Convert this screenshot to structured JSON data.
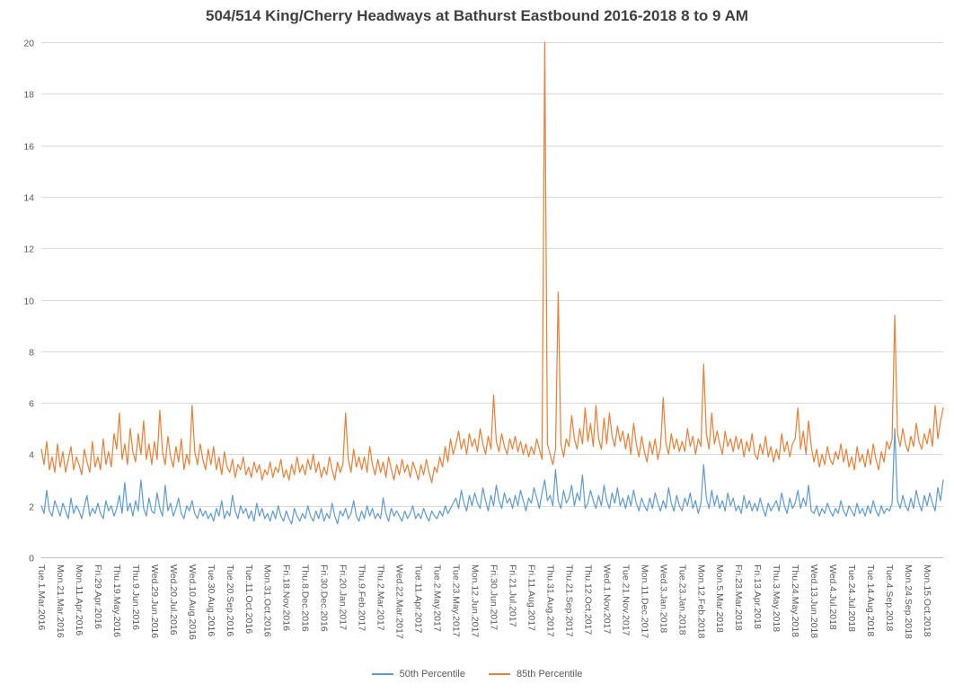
{
  "chart_data": {
    "type": "line",
    "title": "504/514 King/Cherry Headways at Bathurst Eastbound 2016-2018 8 to 9 AM",
    "xlabel": "",
    "ylabel": "",
    "ylim": [
      0,
      20
    ],
    "yticks": [
      0,
      2,
      4,
      6,
      8,
      10,
      12,
      14,
      16,
      18,
      20
    ],
    "grid": true,
    "legend_position": "bottom",
    "points_per_tick": 7,
    "x_tick_labels": [
      "Tue.1.Mar.2016",
      "Mon.21.Mar.2016",
      "Mon.11.Apr.2016",
      "Fri.29.Apr.2016",
      "Thu.19.May.2016",
      "Thu.9.Jun.2016",
      "Wed.29.Jun.2016",
      "Wed.20.Jul.2016",
      "Wed.10.Aug.2016",
      "Tue.30.Aug.2016",
      "Tue.20.Sep.2016",
      "Tue.11.Oct.2016",
      "Mon.31.Oct.2016",
      "Fri.18.Nov.2016",
      "Thu.8.Dec.2016",
      "Fri.30.Dec.2016",
      "Fri.20.Jan.2017",
      "Thu.9.Feb.2017",
      "Thu.2.Mar.2017",
      "Wed.22.Mar.2017",
      "Tue.11.Apr.2017",
      "Tue.2.May.2017",
      "Tue.23.May.2017",
      "Mon.12.Jun.2017",
      "Fri.30.Jun.2017",
      "Fri.21.Jul.2017",
      "Fri.11.Aug.2017",
      "Thu.31.Aug.2017",
      "Thu.21.Sep.2017",
      "Thu.12.Oct.2017",
      "Wed.1.Nov.2017",
      "Tue.21.Nov.2017",
      "Mon.11.Dec.2017",
      "Wed.3.Jan.2018",
      "Tue.23.Jan.2018",
      "Mon.12.Feb.2018",
      "Mon.5.Mar.2018",
      "Fri.23.Mar.2018",
      "Fri.13.Apr.2018",
      "Thu.3.May.2018",
      "Thu.24.May.2018",
      "Wed.13.Jun.2018",
      "Wed.4.Jul.2018",
      "Tue.24.Jul.2018",
      "Tue.14.Aug.2018",
      "Tue.4.Sep.2018",
      "Mon.24.Sep.2018",
      "Mon.15.Oct.2018"
    ],
    "series": [
      {
        "name": "50th Percentile",
        "color": "#5B9BD5",
        "values": [
          2.0,
          1.7,
          2.6,
          1.8,
          1.6,
          2.2,
          1.9,
          1.6,
          2.1,
          1.8,
          1.5,
          2.3,
          1.7,
          2.0,
          1.8,
          1.5,
          2.0,
          2.4,
          1.6,
          1.9,
          1.7,
          2.1,
          1.7,
          1.5,
          2.2,
          1.8,
          2.0,
          1.6,
          1.9,
          2.4,
          1.7,
          2.9,
          1.8,
          2.1,
          1.6,
          2.2,
          1.8,
          3.0,
          1.9,
          1.6,
          2.3,
          1.8,
          1.7,
          2.5,
          1.9,
          1.6,
          2.8,
          1.8,
          2.1,
          1.6,
          1.9,
          2.3,
          1.7,
          1.5,
          2.0,
          1.8,
          2.2,
          1.7,
          1.5,
          1.9,
          1.6,
          1.8,
          1.5,
          1.7,
          1.4,
          1.9,
          1.6,
          2.2,
          1.5,
          1.8,
          1.6,
          2.4,
          1.8,
          1.5,
          2.0,
          1.7,
          1.9,
          1.5,
          1.8,
          1.4,
          2.1,
          1.6,
          1.9,
          1.5,
          1.7,
          1.4,
          1.8,
          1.5,
          2.0,
          1.6,
          1.4,
          1.8,
          1.5,
          1.3,
          1.9,
          1.6,
          1.4,
          1.7,
          1.5,
          2.0,
          1.6,
          1.4,
          1.8,
          1.5,
          1.9,
          1.4,
          1.7,
          1.5,
          2.1,
          1.6,
          1.3,
          1.8,
          1.6,
          1.9,
          1.5,
          1.7,
          2.2,
          1.6,
          1.4,
          1.8,
          1.5,
          2.0,
          1.6,
          1.9,
          1.5,
          1.7,
          1.5,
          2.3,
          1.7,
          1.4,
          1.9,
          1.6,
          1.8,
          1.6,
          1.4,
          1.8,
          1.5,
          1.7,
          2.0,
          1.5,
          1.7,
          1.5,
          1.9,
          1.6,
          1.4,
          1.8,
          1.6,
          1.5,
          1.8,
          1.6,
          2.0,
          1.7,
          1.9,
          2.1,
          2.3,
          1.9,
          2.6,
          2.1,
          1.8,
          2.4,
          2.0,
          2.5,
          2.1,
          1.9,
          2.7,
          2.2,
          1.8,
          2.4,
          2.0,
          2.8,
          2.2,
          1.9,
          2.5,
          2.1,
          2.3,
          1.9,
          2.4,
          2.0,
          2.6,
          2.2,
          1.8,
          2.3,
          2.1,
          2.7,
          2.3,
          1.9,
          2.5,
          3.0,
          2.2,
          2.4,
          2.0,
          3.4,
          2.2,
          1.9,
          2.6,
          2.1,
          2.3,
          2.8,
          2.0,
          2.5,
          2.2,
          3.2,
          1.9,
          2.1,
          2.6,
          2.2,
          1.9,
          2.4,
          2.0,
          2.8,
          2.2,
          1.9,
          2.5,
          2.1,
          2.7,
          2.0,
          2.3,
          1.9,
          2.4,
          2.0,
          2.6,
          2.1,
          1.8,
          2.3,
          2.0,
          1.8,
          2.3,
          1.9,
          2.5,
          2.1,
          1.8,
          2.2,
          1.9,
          2.7,
          2.1,
          1.8,
          2.4,
          2.0,
          1.8,
          2.3,
          2.0,
          2.5,
          1.9,
          2.2,
          1.7,
          2.1,
          3.6,
          2.3,
          1.9,
          2.6,
          2.0,
          2.4,
          1.9,
          2.2,
          1.8,
          2.5,
          2.0,
          2.3,
          1.8,
          2.0,
          1.7,
          2.4,
          1.9,
          2.2,
          1.8,
          2.1,
          1.8,
          2.3,
          1.9,
          1.6,
          2.1,
          1.8,
          2.0,
          2.2,
          1.8,
          2.5,
          2.0,
          1.7,
          2.3,
          1.9,
          2.1,
          2.6,
          1.9,
          2.3,
          2.0,
          2.8,
          1.8,
          1.7,
          2.0,
          1.6,
          1.9,
          1.7,
          2.1,
          1.8,
          1.6,
          1.9,
          1.7,
          2.2,
          1.8,
          1.6,
          2.0,
          1.8,
          1.6,
          2.1,
          1.7,
          1.9,
          1.6,
          2.0,
          1.7,
          2.2,
          1.8,
          1.6,
          2.0,
          1.7,
          1.9,
          1.8,
          2.1,
          5.0,
          2.2,
          1.9,
          2.4,
          2.0,
          1.8,
          2.3,
          1.9,
          2.6,
          2.1,
          1.8,
          2.4,
          2.0,
          2.5,
          2.1,
          1.8,
          2.7,
          2.2,
          3.0
        ]
      },
      {
        "name": "85th Percentile",
        "color": "#ED7D31",
        "values": [
          4.2,
          3.6,
          4.5,
          3.4,
          3.9,
          3.3,
          4.4,
          3.5,
          4.1,
          3.3,
          3.8,
          4.3,
          3.4,
          3.9,
          3.6,
          3.2,
          4.2,
          3.7,
          3.3,
          4.5,
          3.5,
          3.9,
          3.4,
          4.6,
          3.6,
          4.1,
          3.5,
          4.8,
          4.2,
          5.6,
          3.8,
          4.4,
          3.6,
          5.0,
          4.1,
          3.7,
          4.8,
          4.0,
          5.3,
          3.8,
          4.4,
          3.6,
          4.5,
          3.8,
          5.7,
          4.1,
          3.6,
          4.7,
          3.9,
          3.5,
          4.3,
          3.7,
          4.6,
          3.4,
          4.0,
          3.6,
          5.9,
          4.1,
          3.6,
          4.4,
          3.8,
          3.4,
          4.2,
          3.6,
          4.3,
          3.4,
          3.9,
          3.2,
          4.1,
          3.5,
          3.3,
          3.8,
          3.1,
          3.6,
          3.4,
          3.9,
          3.2,
          3.5,
          3.1,
          3.7,
          3.3,
          3.6,
          3.0,
          3.4,
          3.2,
          3.7,
          3.1,
          3.5,
          3.3,
          3.8,
          3.1,
          3.4,
          3.0,
          3.6,
          3.2,
          3.9,
          3.3,
          3.6,
          3.2,
          3.8,
          3.4,
          4.0,
          3.3,
          3.7,
          3.1,
          3.5,
          3.2,
          3.9,
          3.4,
          3.0,
          3.7,
          3.3,
          3.6,
          5.6,
          3.8,
          3.3,
          4.2,
          3.5,
          3.9,
          3.4,
          3.9,
          3.3,
          4.3,
          3.6,
          3.2,
          3.8,
          3.3,
          3.7,
          3.1,
          3.9,
          3.4,
          3.0,
          3.6,
          3.2,
          3.8,
          3.3,
          3.6,
          3.1,
          3.7,
          3.4,
          3.0,
          3.6,
          3.2,
          3.8,
          3.3,
          2.9,
          3.5,
          3.3,
          3.9,
          3.5,
          4.3,
          3.7,
          4.6,
          4.0,
          4.4,
          4.9,
          4.2,
          4.6,
          4.0,
          4.8,
          4.3,
          4.6,
          4.1,
          5.0,
          4.4,
          4.0,
          4.7,
          4.2,
          6.3,
          4.5,
          4.1,
          4.8,
          4.3,
          4.0,
          4.6,
          4.2,
          4.7,
          4.1,
          4.5,
          4.0,
          4.4,
          3.9,
          4.3,
          4.0,
          4.6,
          4.2,
          3.8,
          20.0,
          4.4,
          4.0,
          3.6,
          4.2,
          10.3,
          4.4,
          3.9,
          4.6,
          4.3,
          5.5,
          4.6,
          4.2,
          5.0,
          4.4,
          5.8,
          4.5,
          5.2,
          4.3,
          5.9,
          4.6,
          4.2,
          5.4,
          4.4,
          5.6,
          4.7,
          4.3,
          5.1,
          4.5,
          4.9,
          4.2,
          4.8,
          4.0,
          5.2,
          4.4,
          3.9,
          4.7,
          4.1,
          3.7,
          4.5,
          4.0,
          4.6,
          3.8,
          4.3,
          6.2,
          4.4,
          4.0,
          4.8,
          4.2,
          4.6,
          4.1,
          4.5,
          4.1,
          5.0,
          4.3,
          4.7,
          4.0,
          4.6,
          4.3,
          7.5,
          4.8,
          4.2,
          5.6,
          4.4,
          4.9,
          4.4,
          4.0,
          4.9,
          4.3,
          4.6,
          4.1,
          4.7,
          4.2,
          4.6,
          3.9,
          4.5,
          4.1,
          4.8,
          4.0,
          3.8,
          4.4,
          4.0,
          4.7,
          3.9,
          4.3,
          3.7,
          4.2,
          3.8,
          4.8,
          4.1,
          4.5,
          3.9,
          4.4,
          4.6,
          5.8,
          4.2,
          4.9,
          4.0,
          5.3,
          4.3,
          3.7,
          4.2,
          3.5,
          4.0,
          3.6,
          4.3,
          3.8,
          3.6,
          4.1,
          3.8,
          4.4,
          3.7,
          4.2,
          3.5,
          3.9,
          3.4,
          4.3,
          3.7,
          4.0,
          3.5,
          4.2,
          3.6,
          4.4,
          3.8,
          3.4,
          4.1,
          3.7,
          4.5,
          4.2,
          4.6,
          9.4,
          4.8,
          4.3,
          5.0,
          4.4,
          4.1,
          4.7,
          4.3,
          5.2,
          4.5,
          4.2,
          4.8,
          4.4,
          5.0,
          4.3,
          5.9,
          4.6,
          5.3,
          5.8
        ]
      }
    ],
    "colors": {
      "grid": "#D9D9D9",
      "axis_line": "#BFBFBF",
      "tick_text": "#595959",
      "title_text": "#404040"
    }
  }
}
